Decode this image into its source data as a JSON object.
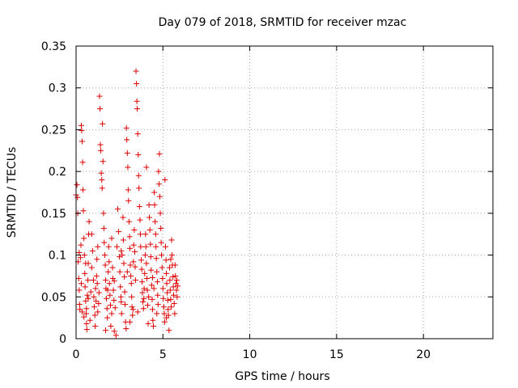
{
  "chart_data": {
    "type": "scatter",
    "title": "Day 079 of 2018, SRMTID for receiver mzac",
    "xlabel": "GPS time / hours",
    "ylabel": "SRMTID / TECUs",
    "xlim": [
      0,
      24
    ],
    "ylim": [
      0,
      0.35
    ],
    "xticks": [
      0,
      5,
      10,
      15,
      20
    ],
    "xtick_labels": [
      "0",
      "5",
      "10",
      "15",
      "20"
    ],
    "yticks": [
      0,
      0.05,
      0.1,
      0.15,
      0.2,
      0.25,
      0.3,
      0.35
    ],
    "ytick_labels": [
      "0",
      "0.05",
      "0.1",
      "0.15",
      "0.2",
      "0.25",
      "0.3",
      "0.35"
    ],
    "grid": true,
    "marker": "+",
    "series_color": "#dd0000",
    "series": [
      {
        "name": "mzac",
        "points": [
          [
            0.0,
            0.172
          ],
          [
            0.05,
            0.184
          ],
          [
            0.08,
            0.169
          ],
          [
            0.1,
            0.15
          ],
          [
            0.12,
            0.092
          ],
          [
            0.15,
            0.072
          ],
          [
            0.18,
            0.058
          ],
          [
            0.2,
            0.041
          ],
          [
            0.22,
            0.035
          ],
          [
            0.25,
            0.097
          ],
          [
            0.28,
            0.112
          ],
          [
            0.3,
            0.255
          ],
          [
            0.32,
            0.249
          ],
          [
            0.35,
            0.236
          ],
          [
            0.38,
            0.211
          ],
          [
            0.4,
            0.178
          ],
          [
            0.42,
            0.153
          ],
          [
            0.45,
            0.12
          ],
          [
            0.48,
            0.1
          ],
          [
            0.5,
            0.078
          ],
          [
            0.52,
            0.062
          ],
          [
            0.55,
            0.045
          ],
          [
            0.58,
            0.03
          ],
          [
            0.6,
            0.018
          ],
          [
            0.62,
            0.011
          ],
          [
            0.65,
            0.052
          ],
          [
            0.68,
            0.07
          ],
          [
            0.7,
            0.09
          ],
          [
            0.72,
            0.125
          ],
          [
            0.75,
            0.14
          ],
          [
            0.18,
            0.103
          ],
          [
            0.3,
            0.066
          ],
          [
            0.45,
            0.026
          ],
          [
            0.6,
            0.036
          ],
          [
            0.7,
            0.048
          ],
          [
            0.8,
            0.022
          ],
          [
            0.85,
            0.056
          ],
          [
            0.9,
            0.085
          ],
          [
            0.95,
            0.105
          ],
          [
            1.0,
            0.07
          ],
          [
            1.02,
            0.05
          ],
          [
            1.05,
            0.038
          ],
          [
            1.08,
            0.028
          ],
          [
            1.1,
            0.015
          ],
          [
            1.12,
            0.06
          ],
          [
            1.15,
            0.045
          ],
          [
            1.18,
            0.075
          ],
          [
            1.2,
            0.095
          ],
          [
            1.22,
            0.066
          ],
          [
            1.25,
            0.032
          ],
          [
            1.3,
            0.042
          ],
          [
            1.32,
            0.055
          ],
          [
            1.35,
            0.29
          ],
          [
            1.38,
            0.275
          ],
          [
            1.4,
            0.232
          ],
          [
            1.42,
            0.225
          ],
          [
            1.45,
            0.198
          ],
          [
            1.48,
            0.19
          ],
          [
            1.5,
            0.18
          ],
          [
            1.52,
            0.257
          ],
          [
            1.55,
            0.212
          ],
          [
            1.58,
            0.15
          ],
          [
            1.6,
            0.132
          ],
          [
            1.62,
            0.115
          ],
          [
            1.65,
            0.1
          ],
          [
            1.68,
            0.088
          ],
          [
            1.7,
            0.07
          ],
          [
            1.72,
            0.06
          ],
          [
            1.75,
            0.048
          ],
          [
            1.78,
            0.036
          ],
          [
            1.8,
            0.025
          ],
          [
            1.82,
            0.058
          ],
          [
            1.85,
            0.08
          ],
          [
            1.88,
            0.11
          ],
          [
            1.9,
            0.092
          ],
          [
            1.92,
            0.066
          ],
          [
            1.95,
            0.052
          ],
          [
            1.98,
            0.04
          ],
          [
            2.0,
            0.015
          ],
          [
            2.05,
            0.03
          ],
          [
            2.1,
            0.085
          ],
          [
            2.12,
            0.072
          ],
          [
            2.15,
            0.058
          ],
          [
            2.18,
            0.046
          ],
          [
            2.2,
            0.009
          ],
          [
            2.25,
            0.037
          ],
          [
            2.3,
            0.004
          ],
          [
            2.35,
            0.11
          ],
          [
            2.4,
            0.155
          ],
          [
            2.45,
            0.128
          ],
          [
            2.5,
            0.098
          ],
          [
            2.52,
            0.08
          ],
          [
            2.55,
            0.062
          ],
          [
            2.58,
            0.05
          ],
          [
            2.6,
            0.044
          ],
          [
            2.62,
            0.03
          ],
          [
            2.65,
            0.1
          ],
          [
            2.7,
            0.145
          ],
          [
            2.72,
            0.118
          ],
          [
            2.75,
            0.09
          ],
          [
            2.78,
            0.074
          ],
          [
            2.8,
            0.056
          ],
          [
            2.82,
            0.041
          ],
          [
            2.85,
            0.02
          ],
          [
            2.88,
            0.012
          ],
          [
            2.9,
            0.252
          ],
          [
            2.92,
            0.238
          ],
          [
            2.95,
            0.222
          ],
          [
            2.98,
            0.205
          ],
          [
            3.0,
            0.178
          ],
          [
            3.02,
            0.165
          ],
          [
            3.05,
            0.14
          ],
          [
            3.08,
            0.122
          ],
          [
            3.1,
            0.108
          ],
          [
            3.12,
            0.088
          ],
          [
            3.15,
            0.075
          ],
          [
            3.18,
            0.066
          ],
          [
            3.2,
            0.05
          ],
          [
            3.22,
            0.038
          ],
          [
            3.25,
            0.028
          ],
          [
            3.28,
            0.035
          ],
          [
            3.3,
            0.092
          ],
          [
            3.32,
            0.112
          ],
          [
            3.35,
            0.13
          ],
          [
            3.38,
            0.104
          ],
          [
            3.4,
            0.086
          ],
          [
            3.42,
            0.07
          ],
          [
            3.45,
            0.32
          ],
          [
            3.48,
            0.305
          ],
          [
            3.5,
            0.284
          ],
          [
            3.52,
            0.275
          ],
          [
            3.55,
            0.245
          ],
          [
            3.58,
            0.22
          ],
          [
            3.6,
            0.195
          ],
          [
            3.62,
            0.18
          ],
          [
            3.65,
            0.158
          ],
          [
            3.68,
            0.142
          ],
          [
            3.7,
            0.125
          ],
          [
            3.72,
            0.11
          ],
          [
            3.75,
            0.094
          ],
          [
            3.78,
            0.083
          ],
          [
            3.8,
            0.068
          ],
          [
            3.82,
            0.055
          ],
          [
            3.85,
            0.044
          ],
          [
            3.88,
            0.036
          ],
          [
            3.9,
            0.048
          ],
          [
            3.92,
            0.06
          ],
          [
            3.95,
            0.078
          ],
          [
            3.98,
            0.1
          ],
          [
            4.0,
            0.125
          ],
          [
            4.02,
            0.11
          ],
          [
            4.05,
            0.09
          ],
          [
            4.08,
            0.072
          ],
          [
            4.1,
            0.058
          ],
          [
            4.12,
            0.04
          ],
          [
            4.15,
            0.018
          ],
          [
            4.18,
            0.05
          ],
          [
            4.2,
            0.16
          ],
          [
            4.22,
            0.145
          ],
          [
            4.25,
            0.13
          ],
          [
            4.28,
            0.113
          ],
          [
            4.3,
            0.098
          ],
          [
            4.32,
            0.082
          ],
          [
            4.35,
            0.064
          ],
          [
            4.38,
            0.047
          ],
          [
            4.4,
            0.035
          ],
          [
            4.42,
            0.022
          ],
          [
            4.45,
            0.015
          ],
          [
            4.48,
            0.06
          ],
          [
            4.5,
            0.175
          ],
          [
            4.52,
            0.16
          ],
          [
            4.55,
            0.14
          ],
          [
            4.58,
            0.125
          ],
          [
            4.6,
            0.11
          ],
          [
            4.62,
            0.096
          ],
          [
            4.65,
            0.08
          ],
          [
            4.68,
            0.068
          ],
          [
            4.7,
            0.052
          ],
          [
            4.72,
            0.041
          ],
          [
            4.75,
            0.2
          ],
          [
            4.78,
            0.185
          ],
          [
            4.8,
            0.221
          ],
          [
            4.82,
            0.17
          ],
          [
            4.85,
            0.15
          ],
          [
            4.88,
            0.132
          ],
          [
            4.9,
            0.115
          ],
          [
            4.92,
            0.1
          ],
          [
            4.95,
            0.085
          ],
          [
            4.98,
            0.072
          ],
          [
            5.0,
            0.06
          ],
          [
            5.02,
            0.048
          ],
          [
            5.05,
            0.038
          ],
          [
            5.08,
            0.03
          ],
          [
            5.1,
            0.02
          ],
          [
            5.12,
            0.19
          ],
          [
            5.15,
            0.11
          ],
          [
            5.18,
            0.094
          ],
          [
            5.2,
            0.078
          ],
          [
            5.22,
            0.066
          ],
          [
            5.25,
            0.055
          ],
          [
            5.28,
            0.046
          ],
          [
            5.3,
            0.035
          ],
          [
            5.32,
            0.028
          ],
          [
            5.35,
            0.01
          ],
          [
            5.38,
            0.085
          ],
          [
            5.4,
            0.07
          ],
          [
            5.42,
            0.058
          ],
          [
            5.45,
            0.047
          ],
          [
            5.48,
            0.038
          ],
          [
            5.5,
            0.118
          ],
          [
            5.52,
            0.1
          ],
          [
            5.55,
            0.088
          ],
          [
            5.58,
            0.074
          ],
          [
            5.6,
            0.062
          ],
          [
            5.62,
            0.052
          ],
          [
            5.65,
            0.042
          ],
          [
            5.68,
            0.03
          ],
          [
            5.7,
            0.088
          ],
          [
            5.72,
            0.075
          ],
          [
            5.75,
            0.066
          ],
          [
            5.78,
            0.058
          ],
          [
            5.8,
            0.07
          ],
          [
            5.82,
            0.05
          ],
          [
            5.85,
            0.063
          ],
          [
            0.9,
            0.125
          ],
          [
            1.7,
            0.01
          ],
          [
            2.05,
            0.12
          ],
          [
            2.95,
            0.08
          ],
          [
            3.55,
            0.032
          ],
          [
            4.05,
            0.205
          ],
          [
            4.65,
            0.03
          ],
          [
            5.2,
            0.025
          ],
          [
            0.35,
            0.032
          ],
          [
            2.2,
            0.069
          ],
          [
            3.1,
            0.02
          ],
          [
            4.4,
            0.073
          ],
          [
            5.45,
            0.095
          ],
          [
            0.55,
            0.09
          ],
          [
            1.25,
            0.11
          ],
          [
            2.6,
            0.105
          ]
        ]
      }
    ]
  }
}
